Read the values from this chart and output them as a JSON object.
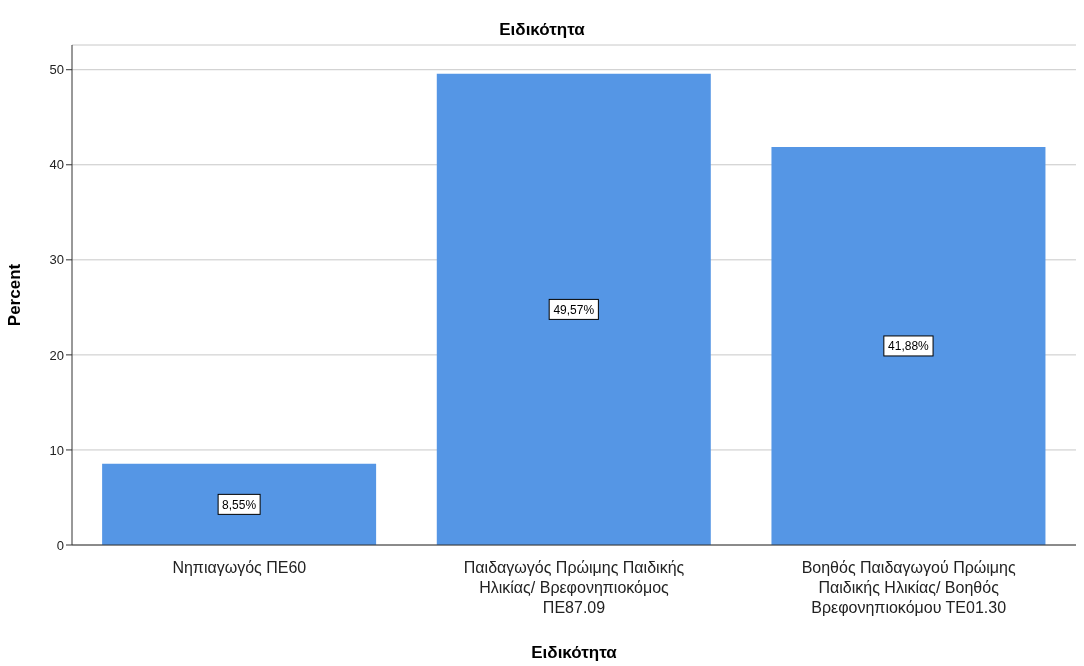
{
  "chart_data": {
    "type": "bar",
    "title": "Ειδικότητα",
    "xlabel": "Ειδικότητα",
    "ylabel": "Percent",
    "categories": [
      "Νηπιαγωγός ΠΕ60",
      "Παιδαγωγός Πρώιμης Παιδικής Ηλικίας/ Βρεφονηπιοκόμος ΠΕ87.09",
      "Βοηθός Παιδαγωγού Πρώιμης Παιδικής Ηλικίας/ Βοηθός Βρεφονηπιοκόμου ΤΕ01.30"
    ],
    "values": [
      8.55,
      49.57,
      41.88
    ],
    "value_labels": [
      "8,55%",
      "49,57%",
      "41,88%"
    ],
    "color": "#5596e5",
    "ylim": [
      0,
      52.6
    ],
    "yticks": [
      0,
      10,
      20,
      30,
      40,
      50
    ],
    "grid": "y"
  }
}
